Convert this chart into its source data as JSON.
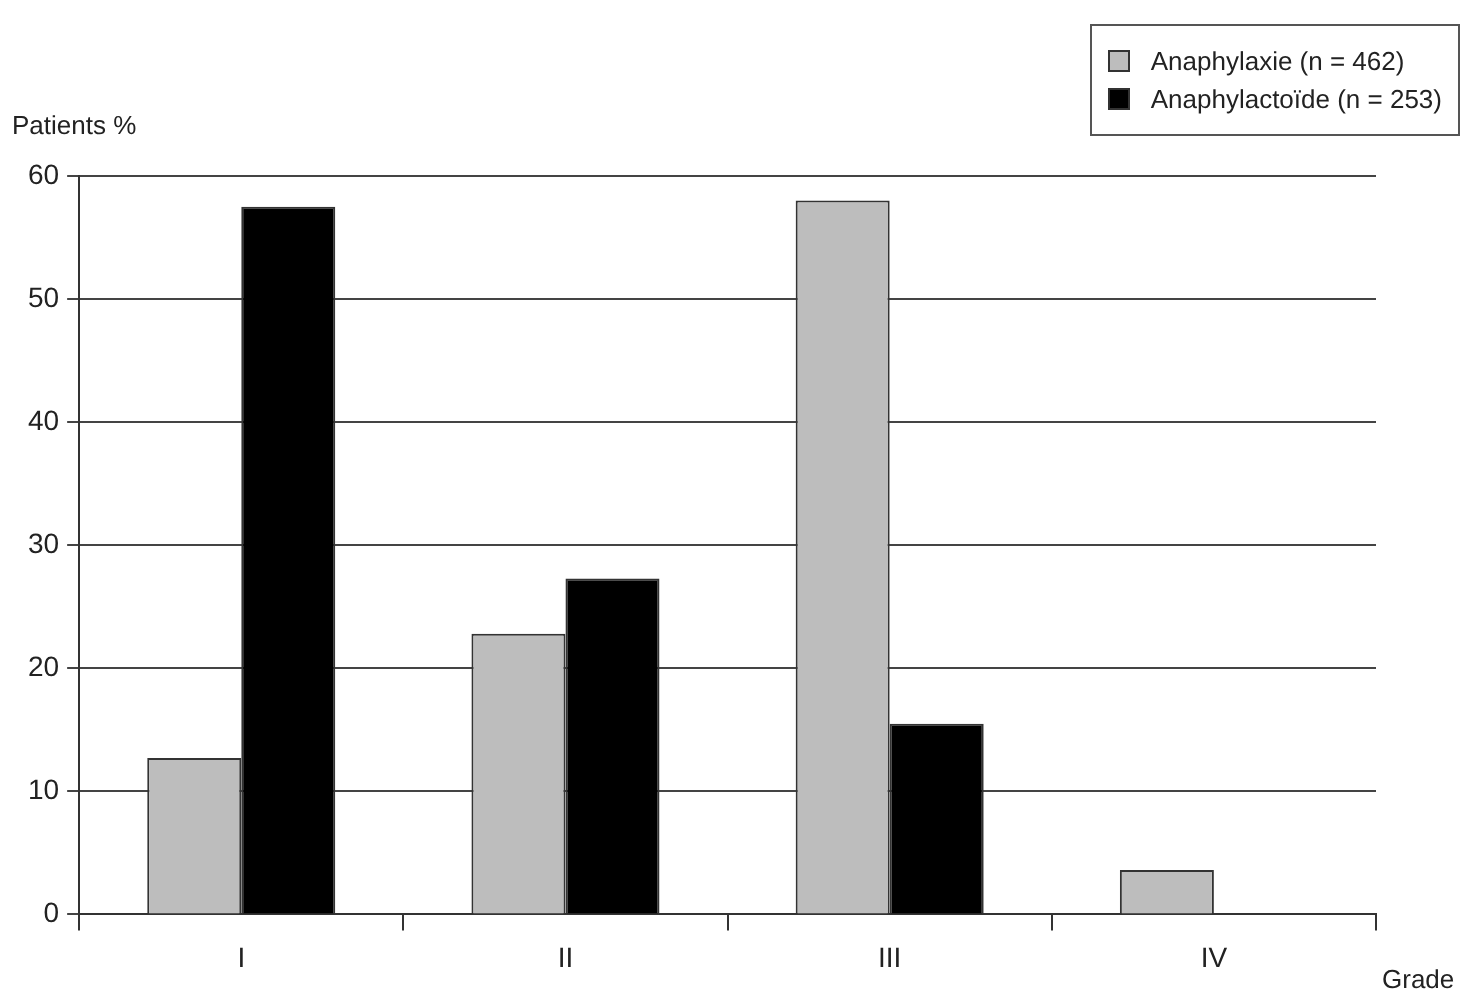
{
  "chart_data": {
    "type": "bar",
    "xlabel": "Grade",
    "ylabel": "Patients %",
    "categories": [
      "I",
      "II",
      "III",
      "IV"
    ],
    "series": [
      {
        "name": "Anaphylaxie (n = 462)",
        "color": "#bdbdbd",
        "values": [
          12.7,
          22.8,
          58,
          3.6
        ]
      },
      {
        "name": "Anaphylactoïde (n = 253)",
        "color": "#000000",
        "values": [
          57.5,
          27.3,
          15.5,
          null
        ]
      }
    ],
    "ylim": [
      0,
      60
    ],
    "yticks": [
      0,
      10,
      20,
      30,
      40,
      50,
      60
    ],
    "grid": "y",
    "legend": "top right"
  }
}
